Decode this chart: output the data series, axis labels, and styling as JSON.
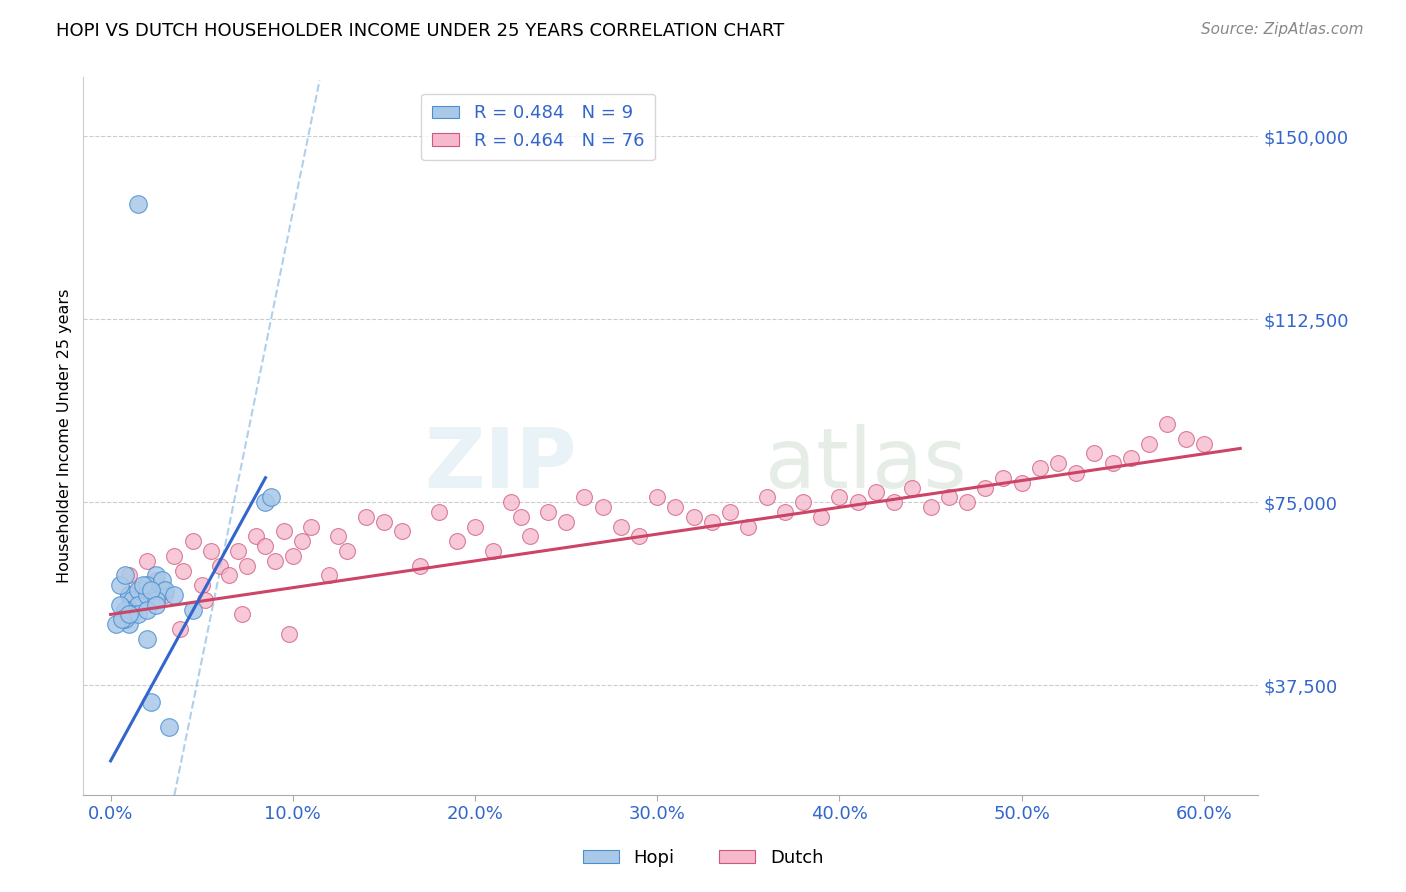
{
  "title": "HOPI VS DUTCH HOUSEHOLDER INCOME UNDER 25 YEARS CORRELATION CHART",
  "source": "Source: ZipAtlas.com",
  "xlabel_ticks": [
    "0.0%",
    "10.0%",
    "20.0%",
    "30.0%",
    "40.0%",
    "50.0%",
    "60.0%"
  ],
  "xlabel_vals": [
    0.0,
    10.0,
    20.0,
    30.0,
    40.0,
    50.0,
    60.0
  ],
  "ylabel_ticks": [
    "$37,500",
    "$75,000",
    "$112,500",
    "$150,000"
  ],
  "ylabel_vals": [
    37500,
    75000,
    112500,
    150000
  ],
  "ylim": [
    15000,
    162000
  ],
  "xlim": [
    -1.5,
    63.0
  ],
  "hopi_R": 0.484,
  "hopi_N": 9,
  "dutch_R": 0.464,
  "dutch_N": 76,
  "watermark_zip": "ZIP",
  "watermark_atlas": "atlas",
  "hopi_color": "#aac8e8",
  "dutch_color": "#f5b8cc",
  "hopi_edge_color": "#4a90d0",
  "dutch_edge_color": "#d05878",
  "hopi_line_color": "#3366cc",
  "dutch_line_color": "#cc4466",
  "hopi_scatter_x": [
    1.5,
    4.5,
    8.5,
    8.8,
    2.0,
    2.8,
    1.0,
    2.2,
    3.2
  ],
  "hopi_scatter_y": [
    136000,
    53000,
    75000,
    76000,
    47000,
    57000,
    56000,
    34000,
    29000
  ],
  "hopi_line_x0": 0.0,
  "hopi_line_y0": 22000,
  "hopi_line_x1": 8.5,
  "hopi_line_y1": 80000,
  "dutch_line_x0": 0.0,
  "dutch_line_y0": 52000,
  "dutch_line_x1": 62.0,
  "dutch_line_y1": 86000,
  "dashed_line_x0": 3.5,
  "dashed_line_y0": 15000,
  "dashed_line_x1": 11.5,
  "dashed_line_y1": 162000,
  "dutch_scatter_x": [
    1.0,
    1.5,
    2.0,
    2.5,
    3.0,
    3.5,
    4.0,
    4.5,
    5.0,
    5.5,
    6.0,
    6.5,
    7.0,
    7.5,
    8.0,
    8.5,
    9.0,
    9.5,
    10.0,
    10.5,
    11.0,
    12.0,
    12.5,
    13.0,
    14.0,
    15.0,
    16.0,
    17.0,
    18.0,
    19.0,
    20.0,
    21.0,
    22.0,
    22.5,
    23.0,
    24.0,
    25.0,
    26.0,
    27.0,
    28.0,
    29.0,
    30.0,
    31.0,
    32.0,
    33.0,
    34.0,
    35.0,
    36.0,
    37.0,
    38.0,
    39.0,
    40.0,
    41.0,
    42.0,
    43.0,
    44.0,
    45.0,
    46.0,
    47.0,
    48.0,
    49.0,
    50.0,
    51.0,
    52.0,
    53.0,
    54.0,
    55.0,
    56.0,
    57.0,
    58.0,
    59.0,
    60.0,
    3.8,
    5.2,
    7.2,
    9.8
  ],
  "dutch_scatter_y": [
    60000,
    57000,
    63000,
    59000,
    56000,
    64000,
    61000,
    67000,
    58000,
    65000,
    62000,
    60000,
    65000,
    62000,
    68000,
    66000,
    63000,
    69000,
    64000,
    67000,
    70000,
    60000,
    68000,
    65000,
    72000,
    71000,
    69000,
    62000,
    73000,
    67000,
    70000,
    65000,
    75000,
    72000,
    68000,
    73000,
    71000,
    76000,
    74000,
    70000,
    68000,
    76000,
    74000,
    72000,
    71000,
    73000,
    70000,
    76000,
    73000,
    75000,
    72000,
    76000,
    75000,
    77000,
    75000,
    78000,
    74000,
    76000,
    75000,
    78000,
    80000,
    79000,
    82000,
    83000,
    81000,
    85000,
    83000,
    84000,
    87000,
    91000,
    88000,
    87000,
    49000,
    55000,
    52000,
    48000
  ],
  "hopi_extra_x": [
    1.0,
    1.8,
    2.5,
    0.5,
    1.2,
    0.8,
    1.5,
    2.0,
    2.8,
    3.0,
    1.0,
    1.5,
    2.0,
    2.5,
    0.8,
    1.2,
    0.5,
    1.8,
    2.2,
    3.5,
    1.0,
    0.8,
    1.5,
    2.0,
    2.5,
    0.3,
    0.6,
    1.0
  ],
  "hopi_extra_y": [
    56000,
    57000,
    60000,
    58000,
    55000,
    60000,
    57000,
    58000,
    59000,
    57000,
    53000,
    54000,
    56000,
    55000,
    53000,
    52000,
    54000,
    58000,
    57000,
    56000,
    50000,
    51000,
    52000,
    53000,
    54000,
    50000,
    51000,
    52000
  ]
}
